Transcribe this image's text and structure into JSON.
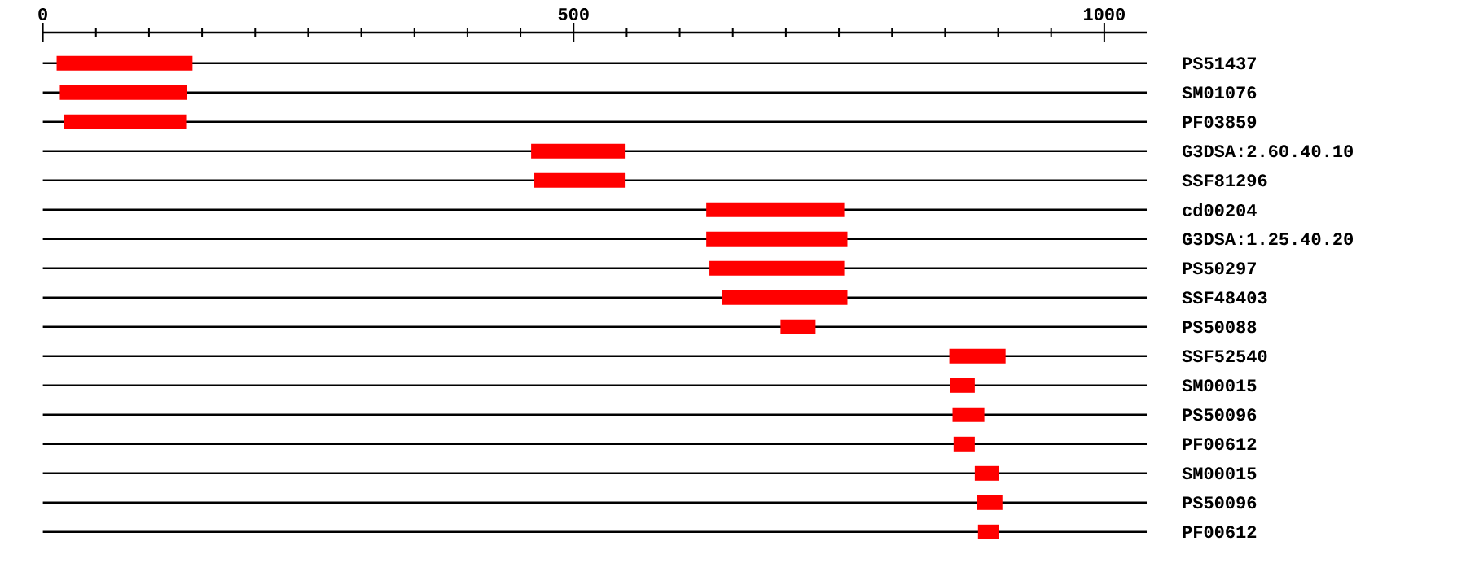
{
  "chart_data": {
    "type": "bar",
    "orientation": "horizontal",
    "color": "#ff0000",
    "grid": "y",
    "categories": [
      "PS51437",
      "SM01076",
      "PF03859",
      "G3DSA:2.60.40.10",
      "SSF81296",
      "cd00204",
      "G3DSA:1.25.40.20",
      "PS50297",
      "SSF48403",
      "PS50088",
      "SSF52540",
      "SM00015",
      "PS50096",
      "PF00612",
      "SM00015",
      "PS50096",
      "PF00612"
    ],
    "base": [
      13,
      16,
      20,
      460,
      463,
      625,
      625,
      628,
      640,
      695,
      854,
      855,
      857,
      858,
      878,
      880,
      881
    ],
    "values": [
      128,
      120,
      115,
      89,
      86,
      130,
      133,
      127,
      118,
      33,
      53,
      23,
      30,
      20,
      23,
      24,
      20
    ],
    "xlim": [
      0,
      1040
    ],
    "xticks": [
      0,
      {
        "value": 50,
        "label": null
      },
      {
        "value": 100,
        "label": null
      },
      {
        "value": 150,
        "label": null
      },
      {
        "value": 200,
        "label": null
      },
      {
        "value": 250,
        "label": null
      },
      {
        "value": 300,
        "label": null
      },
      {
        "value": 350,
        "label": null
      },
      {
        "value": 400,
        "label": null
      },
      {
        "value": 450,
        "label": null
      },
      500,
      {
        "value": 550,
        "label": null
      },
      {
        "value": 600,
        "label": null
      },
      {
        "value": 650,
        "label": null
      },
      {
        "value": 700,
        "label": null
      },
      {
        "value": 750,
        "label": null
      },
      {
        "value": 800,
        "label": null
      },
      {
        "value": 850,
        "label": null
      },
      {
        "value": 900,
        "label": null
      },
      {
        "value": 950,
        "label": null
      },
      1000
    ]
  }
}
